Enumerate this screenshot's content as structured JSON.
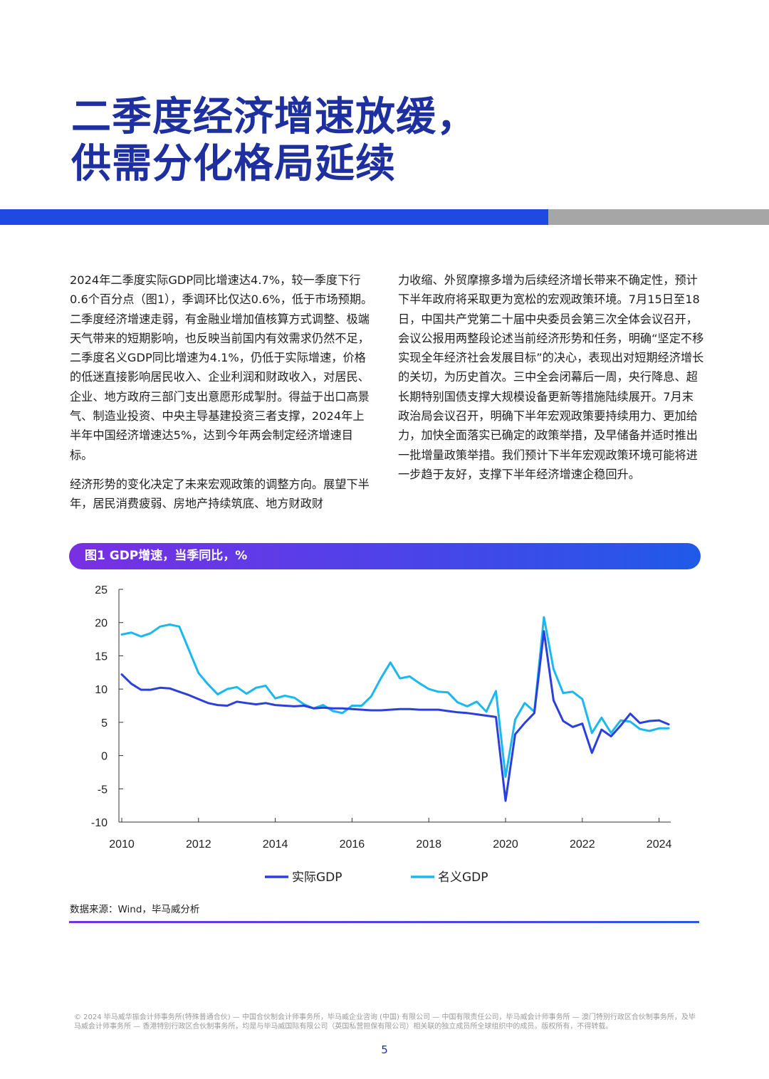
{
  "title": {
    "line1": "二季度经济增速放缓，",
    "line2": "供需分化格局延续"
  },
  "body": {
    "left_para1": "2024年二季度实际GDP同比增速达4.7%，较一季度下行0.6个百分点（图1），季调环比仅达0.6%，低于市场预期。二季度经济增速走弱，有金融业增加值核算方式调整、极端天气带来的短期影响，也反映当前国内有效需求仍然不足，二季度名义GDP同比增速为4.1%，仍低于实际增速，价格的低迷直接影响居民收入、企业利润和财政收入，对居民、企业、地方政府三部门支出意愿形成掣肘。得益于出口高景气、制造业投资、中央主导基建投资三者支撑，2024年上半年中国经济增速达5%，达到今年两会制定经济增速目标。",
    "left_para2": "经济形势的变化决定了未来宏观政策的调整方向。展望下半年，居民消费疲弱、房地产持续筑底、地方财政财",
    "right_para": "力收缩、外贸摩擦多增为后续经济增长带来不确定性，预计下半年政府将采取更为宽松的宏观政策环境。7月15日至18日，中国共产党第二十届中央委员会第三次全体会议召开，会议公报用两整段论述当前经济形势和任务，明确“坚定不移实现全年经济社会发展目标”的决心，表现出对短期经济增长的关切，为历史首次。三中全会闭幕后一周，央行降息、超长期特别国债支撑大规模设备更新等措施陆续展开。7月末政治局会议召开，明确下半年宏观政策要持续用力、更加给力，加快全面落实已确定的政策举措，及早储备并适时推出一批增量政策举措。我们预计下半年宏观政策环境可能将进一步趋于友好，支撑下半年经济增速企稳回升。"
  },
  "figure": {
    "header": "图1 GDP增速，当季同比，%",
    "source": "数据来源：Wind，毕马威分析"
  },
  "footer": {
    "copyright": "© 2024 毕马威华振会计师事务所(特殊普通合伙) — 中国合伙制会计师事务所，毕马威企业咨询 (中国) 有限公司 — 中国有限责任公司，毕马威会计师事务所 — 澳门特别行政区合伙制事务所，及毕马威会计师事务所 — 香港特别行政区合伙制事务所，均是与毕马威国际有限公司（英国私营担保有限公司）相关联的独立成员所全球组织中的成员。版权所有，不得转载。",
    "page_number": "5"
  },
  "colors": {
    "title": "#1e2fa0",
    "accent_blue": "#1e49e2",
    "accent_grey": "#a6a6a6",
    "real_gdp": "#2b3fdc",
    "nominal_gdp": "#1ab8ee"
  },
  "chart_data": {
    "type": "line",
    "title": "",
    "xlabel": "",
    "ylabel": "",
    "ylim": [
      -10,
      25
    ],
    "yticks": [
      "25",
      "20",
      "15",
      "10",
      "5",
      "0",
      "-5",
      "-10"
    ],
    "xticks": [
      "2010",
      "2012",
      "2014",
      "2016",
      "2018",
      "2020",
      "2022",
      "2024"
    ],
    "legend_position": "bottom",
    "grid": false,
    "x_start": "2010Q1",
    "series": [
      {
        "name": "实际GDP",
        "color": "#2b3fdc",
        "values": [
          12.2,
          10.8,
          9.9,
          9.9,
          10.2,
          10.1,
          9.6,
          9.1,
          8.5,
          7.9,
          7.6,
          7.5,
          8.1,
          7.9,
          7.7,
          7.9,
          7.6,
          7.5,
          7.4,
          7.5,
          7.1,
          7.2,
          7.1,
          7.1,
          7.0,
          6.9,
          6.8,
          6.8,
          6.9,
          7.0,
          7.0,
          6.9,
          6.9,
          6.9,
          6.7,
          6.5,
          6.4,
          6.2,
          6.0,
          5.8,
          -6.8,
          3.2,
          4.9,
          6.4,
          18.7,
          8.3,
          5.2,
          4.3,
          4.8,
          0.4,
          3.9,
          2.9,
          4.5,
          6.3,
          4.9,
          5.2,
          5.3,
          4.7
        ]
      },
      {
        "name": "名义GDP",
        "color": "#1ab8ee",
        "values": [
          18.2,
          18.5,
          17.9,
          18.4,
          19.4,
          19.7,
          19.4,
          15.9,
          12.4,
          10.7,
          9.2,
          10.0,
          10.3,
          9.3,
          10.2,
          10.5,
          8.6,
          9.0,
          8.7,
          7.7,
          7.1,
          7.6,
          6.7,
          6.4,
          7.5,
          7.5,
          8.9,
          11.6,
          14.0,
          11.6,
          11.9,
          10.9,
          10.0,
          9.6,
          9.5,
          8.0,
          7.4,
          8.1,
          6.6,
          9.7,
          -3.2,
          5.4,
          7.9,
          6.6,
          20.8,
          13.0,
          9.4,
          9.6,
          8.5,
          3.4,
          5.7,
          3.4,
          5.3,
          5.1,
          4.0,
          3.7,
          4.1,
          4.1
        ]
      }
    ]
  }
}
